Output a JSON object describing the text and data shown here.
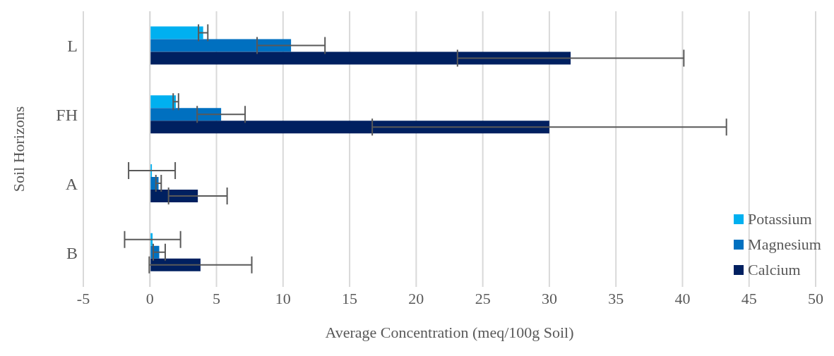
{
  "chart_data": {
    "type": "bar",
    "orientation": "horizontal",
    "xlabel": "Average Concentration (meq/100g Soil)",
    "ylabel": "Soil Horizons",
    "categories": [
      "L",
      "FH",
      "A",
      "B"
    ],
    "series": [
      {
        "name": "Potassium",
        "color": "#00b0f0",
        "values": [
          4.0,
          1.95,
          0.15,
          0.2
        ],
        "errors": [
          0.35,
          0.2,
          1.75,
          2.1
        ]
      },
      {
        "name": "Magnesium",
        "color": "#0070c0",
        "values": [
          10.6,
          5.35,
          0.65,
          0.7
        ],
        "errors": [
          2.55,
          1.8,
          0.2,
          0.45
        ]
      },
      {
        "name": "Calcium",
        "color": "#002060",
        "values": [
          31.6,
          30.0,
          3.6,
          3.8
        ],
        "errors": [
          8.5,
          13.3,
          2.2,
          3.85
        ]
      }
    ],
    "xlim": [
      -5,
      50
    ],
    "xticks": [
      -5,
      0,
      5,
      10,
      15,
      20,
      25,
      30,
      35,
      40,
      45,
      50
    ],
    "grid": "x",
    "legend": "bottom right"
  }
}
